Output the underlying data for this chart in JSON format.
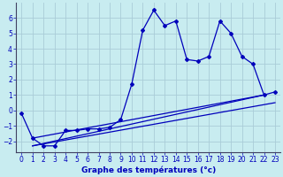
{
  "title": "Graphe des températures (°c)",
  "background_color": "#c8ecf0",
  "grid_color": "#aaccd8",
  "line_color": "#0000bb",
  "xlim": [
    -0.5,
    23.5
  ],
  "ylim": [
    -2.7,
    7.0
  ],
  "yticks": [
    -2,
    -1,
    0,
    1,
    2,
    3,
    4,
    5,
    6
  ],
  "xticks": [
    0,
    1,
    2,
    3,
    4,
    5,
    6,
    7,
    8,
    9,
    10,
    11,
    12,
    13,
    14,
    15,
    16,
    17,
    18,
    19,
    20,
    21,
    22,
    23
  ],
  "curve1_x": [
    0,
    1,
    2,
    3,
    4,
    5,
    6,
    7,
    8,
    9,
    10,
    11,
    12,
    13,
    14,
    15,
    16,
    17,
    18,
    19,
    20,
    21,
    22,
    23
  ],
  "curve1_y": [
    -0.2,
    -1.8,
    -2.3,
    -2.3,
    -1.3,
    -1.3,
    -1.2,
    -1.2,
    -1.1,
    -0.6,
    1.7,
    5.2,
    6.5,
    5.5,
    5.8,
    3.3,
    3.2,
    3.5,
    5.8,
    5.0,
    3.5,
    3.0,
    1.0,
    1.2
  ],
  "line1_x": [
    1,
    22
  ],
  "line1_y": [
    -1.8,
    1.0
  ],
  "line2_x": [
    1,
    22
  ],
  "line2_y": [
    -2.3,
    1.0
  ],
  "line3_x": [
    1,
    23
  ],
  "line3_y": [
    -2.3,
    0.5
  ]
}
